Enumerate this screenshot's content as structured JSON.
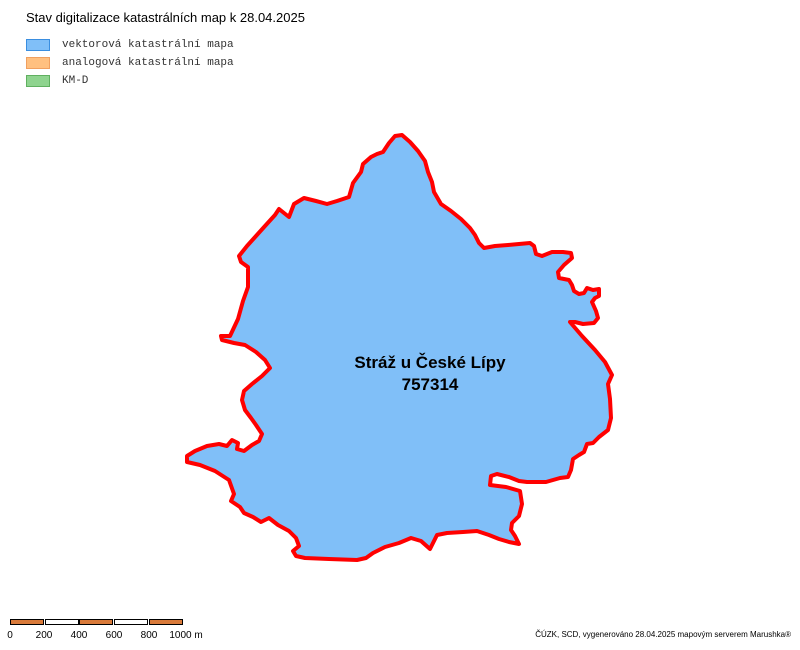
{
  "title": "Stav digitalizace katastrálních map k 28.04.2025",
  "legend": [
    {
      "label": "vektorová katastrální mapa",
      "fill": "#80bff8",
      "stroke": "#3a8ee0"
    },
    {
      "label": "analogová katastrální mapa",
      "fill": "#ffc080",
      "stroke": "#f0a060"
    },
    {
      "label": "KM-D",
      "fill": "#8fd48f",
      "stroke": "#60b060"
    }
  ],
  "map": {
    "area_name": "Stráž u České Lípy",
    "area_code": "757314",
    "area_fill": "#80bff8",
    "boundary_color": "#ff0000"
  },
  "scale": {
    "labels": [
      "0",
      "200",
      "400",
      "600",
      "800",
      "1000 m"
    ],
    "segment_colors": [
      "#d97a3a",
      "#ffffff",
      "#d97a3a",
      "#ffffff",
      "#d97a3a"
    ]
  },
  "credit": "ČÚZK, SCD, vygenerováno 28.04.2025 mapovým serverem Marushka®"
}
